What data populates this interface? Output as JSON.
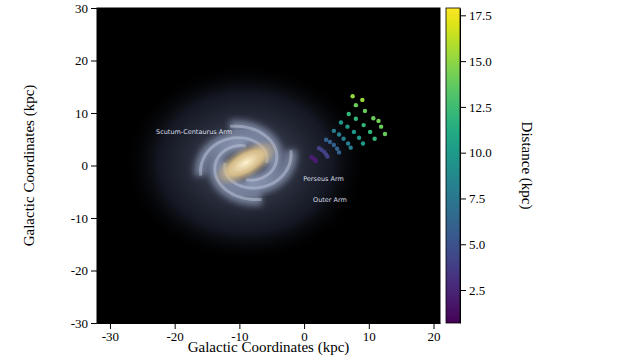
{
  "chart_data": {
    "type": "scatter",
    "x_label": "Galactic Coordinates (kpc)",
    "y_label": "Galactic Coordinates (kpc)",
    "xlim": [
      -32,
      21
    ],
    "ylim": [
      -30,
      30
    ],
    "xticks": [
      -30,
      -20,
      -10,
      0,
      10,
      20
    ],
    "yticks": [
      -30,
      -20,
      -10,
      0,
      10,
      20,
      30
    ],
    "x": [
      1.8,
      3.6,
      5.4,
      7.2,
      9.1,
      10.9,
      1.7,
      3.4,
      5.1,
      6.8,
      8.5,
      10.2,
      11.9,
      1.5,
      3.1,
      4.6,
      6.1,
      7.7,
      9.2,
      10.7,
      1.3,
      2.7,
      4.0,
      5.4,
      6.7,
      8.0,
      9.4,
      1.1,
      2.3,
      3.4,
      4.6,
      5.7,
      6.9,
      8.0,
      7.5,
      9.0,
      11.5,
      12.5
    ],
    "y": [
      0.8,
      1.7,
      2.5,
      3.4,
      4.2,
      5.1,
      1.1,
      2.1,
      3.2,
      4.2,
      5.3,
      6.4,
      7.4,
      1.3,
      2.6,
      3.9,
      5.1,
      6.4,
      7.7,
      9.0,
      1.5,
      3.0,
      4.5,
      5.9,
      7.4,
      8.9,
      10.4,
      1.6,
      3.3,
      4.9,
      6.6,
      8.2,
      9.8,
      11.5,
      13.2,
      12.5,
      8.5,
      6.0
    ],
    "distance": [
      2,
      4,
      6,
      8,
      10,
      12,
      2,
      4,
      6,
      8,
      10,
      12,
      14,
      2,
      4,
      6,
      8,
      10,
      12,
      14,
      2,
      4,
      6,
      8,
      10,
      12,
      14,
      2,
      4,
      6,
      8,
      10,
      12,
      14,
      15.2,
      15.4,
      14.3,
      13.9
    ],
    "colorbar": {
      "label": "Distance (kpc)",
      "range": [
        0.7,
        17.9
      ],
      "ticks": [
        2.5,
        {
          "value": 5,
          "label": "5.0"
        },
        7.5,
        {
          "value": 10,
          "label": "10.0"
        },
        12.5,
        {
          "value": 15,
          "label": "15.0"
        },
        17.5
      ]
    },
    "annotations": [
      {
        "text": "Scutum-Centaurus Arm",
        "x": -17,
        "y": 6
      },
      {
        "text": "Perseus Arm",
        "x": 3,
        "y": -3
      },
      {
        "text": "Outer Arm",
        "x": 4,
        "y": -7
      }
    ],
    "marker": "circle",
    "grid": false
  }
}
